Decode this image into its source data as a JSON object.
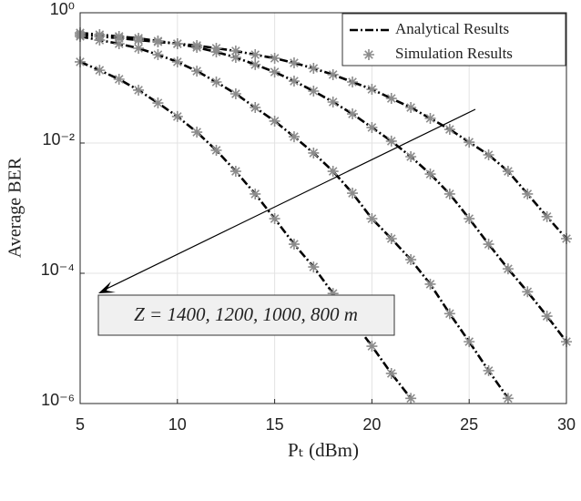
{
  "chart_data": {
    "type": "line",
    "yscale": "log",
    "xlabel": "Pₜ (dBm)",
    "ylabel": "Average BER",
    "annotation": "Z = 1400, 1200, 1000, 800 m",
    "legend": "upper right",
    "grid": true,
    "xlim": [
      5,
      30
    ],
    "xticks": [
      5,
      10,
      15,
      20,
      25,
      30
    ],
    "ylim": [
      1e-06,
      1
    ],
    "yticks": [
      {
        "value": 1e-06,
        "label": "10⁻⁶"
      },
      {
        "value": 0.0001,
        "label": "10⁻⁴"
      },
      {
        "value": 0.01,
        "label": "10⁻²"
      },
      {
        "value": 1,
        "label": "10⁰"
      }
    ],
    "x": [
      5,
      6,
      7,
      8,
      9,
      10,
      11,
      12,
      13,
      14,
      15,
      16,
      17,
      18,
      19,
      20,
      21,
      22,
      23,
      24,
      25,
      26,
      27,
      28,
      29,
      30
    ],
    "series": [
      {
        "name": "Analytical Results",
        "color": "#000000",
        "style": "dash-dot",
        "curves": [
          [
            0.176,
            0.131,
            0.0953,
            0.0648,
            0.0412,
            0.0255,
            0.0147,
            0.00773,
            0.00368,
            0.00165,
            0.00069,
            0.00028,
            0.000125,
            4.9e-05,
            1.9e-05,
            7.6e-06,
            2.9e-06,
            1.2e-06,
            null,
            null,
            null,
            null,
            null,
            null,
            null,
            null
          ],
          [
            0.433,
            0.38,
            0.334,
            0.285,
            0.227,
            0.176,
            0.127,
            0.0865,
            0.0569,
            0.0351,
            0.0217,
            0.0125,
            0.00702,
            0.00368,
            0.0017,
            0.00069,
            0.00034,
            0.000162,
            6.8e-05,
            2.4e-05,
            8.9e-06,
            3.2e-06,
            1.2e-06,
            null,
            null,
            null
          ],
          [
            0.492,
            0.461,
            0.433,
            0.406,
            0.368,
            0.334,
            0.294,
            0.25,
            0.206,
            0.16,
            0.123,
            0.0893,
            0.0627,
            0.0426,
            0.028,
            0.0173,
            0.0107,
            0.00617,
            0.00334,
            0.00165,
            0.00069,
            0.00028,
            0.000117,
            5.2e-05,
            2.2e-05,
            8.9e-06
          ],
          [
            0.461,
            0.433,
            0.406,
            0.38,
            0.357,
            0.334,
            0.314,
            0.285,
            0.259,
            0.227,
            0.2,
            0.17,
            0.14,
            0.112,
            0.0865,
            0.0668,
            0.0484,
            0.0351,
            0.0239,
            0.0162,
            0.0103,
            0.00658,
            0.00368,
            0.00165,
            0.00074,
            0.00034
          ]
        ]
      },
      {
        "name": "Simulation Results",
        "color": "#8c8c8c",
        "style": "asterisk",
        "curves": [
          [
            0.176,
            0.131,
            0.0953,
            0.0648,
            0.0412,
            0.0255,
            0.0147,
            0.00773,
            0.00368,
            0.00165,
            0.00069,
            0.00028,
            0.000125,
            4.9e-05,
            1.9e-05,
            7.6e-06,
            2.9e-06,
            1.2e-06,
            null,
            null,
            null,
            null,
            null,
            null,
            null,
            null
          ],
          [
            0.433,
            0.38,
            0.334,
            0.285,
            0.227,
            0.176,
            0.127,
            0.0865,
            0.0569,
            0.0351,
            0.0217,
            0.0125,
            0.00702,
            0.00368,
            0.0017,
            0.00069,
            0.00034,
            0.000162,
            6.8e-05,
            2.4e-05,
            8.9e-06,
            3.2e-06,
            1.2e-06,
            null,
            null,
            null
          ],
          [
            0.492,
            0.461,
            0.433,
            0.406,
            0.368,
            0.334,
            0.294,
            0.25,
            0.206,
            0.16,
            0.123,
            0.0893,
            0.0627,
            0.0426,
            0.028,
            0.0173,
            0.0107,
            0.00617,
            0.00334,
            0.00165,
            0.00069,
            0.00028,
            0.000117,
            5.2e-05,
            2.2e-05,
            8.9e-06
          ],
          [
            0.461,
            0.433,
            0.406,
            0.38,
            0.357,
            0.334,
            0.314,
            0.285,
            0.259,
            0.227,
            0.2,
            0.17,
            0.14,
            0.112,
            0.0865,
            0.0668,
            0.0484,
            0.0351,
            0.0239,
            0.0162,
            0.0103,
            0.00658,
            0.00368,
            0.00165,
            0.00074,
            0.00034
          ]
        ]
      }
    ]
  }
}
